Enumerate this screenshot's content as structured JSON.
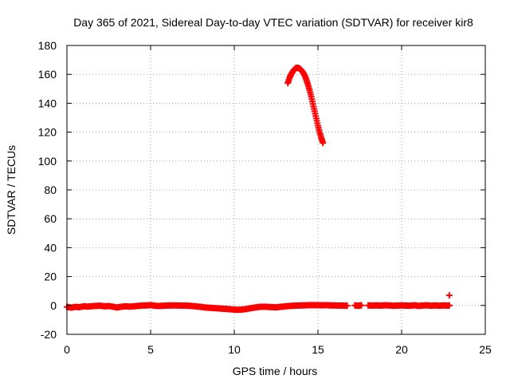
{
  "chart_data": {
    "type": "scatter",
    "title": "Day 365 of 2021, Sidereal Day-to-day VTEC variation (SDTVAR) for receiver kir8",
    "xlabel": "GPS time / hours",
    "ylabel": "SDTVAR / TECUs",
    "xlim": [
      0,
      25
    ],
    "ylim": [
      -20,
      180
    ],
    "xticks": [
      "0",
      "5",
      "10",
      "15",
      "20",
      "25"
    ],
    "yticks": [
      "-20",
      "0",
      "20",
      "40",
      "60",
      "80",
      "100",
      "120",
      "140",
      "160",
      "180"
    ],
    "grid": true,
    "marker": "plus",
    "color": "#ff0000",
    "series": [
      {
        "points": [
          [
            0.0,
            -1.0
          ],
          [
            0.25,
            -1.5
          ],
          [
            0.5,
            -1.0
          ],
          [
            0.75,
            -1.2
          ],
          [
            1.0,
            -0.6
          ],
          [
            1.25,
            -0.8
          ],
          [
            1.5,
            -0.5
          ],
          [
            1.75,
            -0.3
          ],
          [
            2.0,
            -0.2
          ],
          [
            2.25,
            -0.6
          ],
          [
            2.5,
            -0.4
          ],
          [
            2.75,
            -0.9
          ],
          [
            3.0,
            -1.4
          ],
          [
            3.25,
            -0.9
          ],
          [
            3.5,
            -0.6
          ],
          [
            3.75,
            -0.8
          ],
          [
            4.0,
            -0.6
          ],
          [
            4.25,
            -0.3
          ],
          [
            4.5,
            -0.1
          ],
          [
            4.75,
            0.0
          ],
          [
            5.0,
            0.2
          ],
          [
            5.25,
            -0.2
          ],
          [
            5.5,
            -0.4
          ],
          [
            5.75,
            -0.2
          ],
          [
            6.0,
            -0.1
          ],
          [
            6.25,
            0.0
          ],
          [
            6.5,
            0.0
          ],
          [
            6.75,
            -0.1
          ],
          [
            7.0,
            -0.1
          ],
          [
            7.25,
            -0.2
          ],
          [
            7.5,
            -0.4
          ],
          [
            7.75,
            -0.7
          ],
          [
            8.0,
            -1.0
          ],
          [
            8.25,
            -1.4
          ],
          [
            8.5,
            -1.6
          ],
          [
            8.75,
            -1.8
          ],
          [
            9.0,
            -2.0
          ],
          [
            9.25,
            -2.2
          ],
          [
            9.5,
            -2.4
          ],
          [
            9.75,
            -2.6
          ],
          [
            10.0,
            -2.9
          ],
          [
            10.25,
            -3.0
          ],
          [
            10.5,
            -2.8
          ],
          [
            10.75,
            -2.4
          ],
          [
            11.0,
            -1.9
          ],
          [
            11.25,
            -1.4
          ],
          [
            11.5,
            -1.0
          ],
          [
            11.75,
            -0.9
          ],
          [
            12.0,
            -1.0
          ],
          [
            12.25,
            -1.2
          ],
          [
            12.5,
            -1.3
          ],
          [
            12.75,
            -1.0
          ],
          [
            13.0,
            -0.7
          ],
          [
            13.25,
            -0.4
          ],
          [
            13.5,
            -0.2
          ],
          [
            13.75,
            -0.1
          ],
          [
            14.0,
            0.0
          ],
          [
            14.25,
            0.1
          ],
          [
            14.5,
            0.2
          ],
          [
            14.75,
            0.2
          ],
          [
            15.0,
            0.2
          ],
          [
            15.25,
            0.1
          ],
          [
            15.5,
            0.2
          ],
          [
            15.75,
            0.0
          ],
          [
            16.0,
            0.0
          ],
          [
            16.25,
            -0.1
          ],
          [
            16.5,
            -0.1
          ],
          [
            16.75,
            -0.2
          ],
          [
            17.2,
            0.0
          ],
          [
            17.4,
            -0.2
          ],
          [
            17.6,
            0.1
          ],
          [
            18.0,
            0.0
          ],
          [
            18.25,
            -0.1
          ],
          [
            18.5,
            0.0
          ],
          [
            18.75,
            -0.1
          ],
          [
            19.0,
            0.1
          ],
          [
            19.25,
            0.0
          ],
          [
            19.5,
            -0.2
          ],
          [
            19.75,
            -0.1
          ],
          [
            20.0,
            0.0
          ],
          [
            20.25,
            -0.1
          ],
          [
            20.5,
            -0.2
          ],
          [
            20.75,
            0.1
          ],
          [
            21.0,
            -0.3
          ],
          [
            21.25,
            -0.1
          ],
          [
            21.5,
            0.1
          ],
          [
            21.75,
            -0.2
          ],
          [
            22.0,
            0.0
          ],
          [
            22.25,
            -0.2
          ],
          [
            22.5,
            0.0
          ],
          [
            22.75,
            -0.1
          ],
          [
            22.85,
            0.0
          ],
          [
            22.85,
            7.0
          ],
          [
            13.2,
            154.0
          ],
          [
            13.3,
            157.5
          ],
          [
            13.4,
            160.0
          ],
          [
            13.5,
            162.0
          ],
          [
            13.6,
            163.5
          ],
          [
            13.7,
            164.5
          ],
          [
            13.8,
            164.5
          ],
          [
            13.9,
            164.0
          ],
          [
            14.0,
            163.0
          ],
          [
            14.1,
            161.5
          ],
          [
            14.2,
            159.5
          ],
          [
            14.3,
            156.5
          ],
          [
            14.4,
            153.0
          ],
          [
            14.5,
            149.0
          ],
          [
            14.6,
            144.5
          ],
          [
            14.7,
            139.5
          ],
          [
            14.8,
            134.5
          ],
          [
            14.9,
            129.5
          ],
          [
            15.0,
            124.5
          ],
          [
            15.1,
            120.0
          ],
          [
            15.2,
            116.0
          ],
          [
            15.3,
            112.5
          ]
        ]
      }
    ]
  }
}
